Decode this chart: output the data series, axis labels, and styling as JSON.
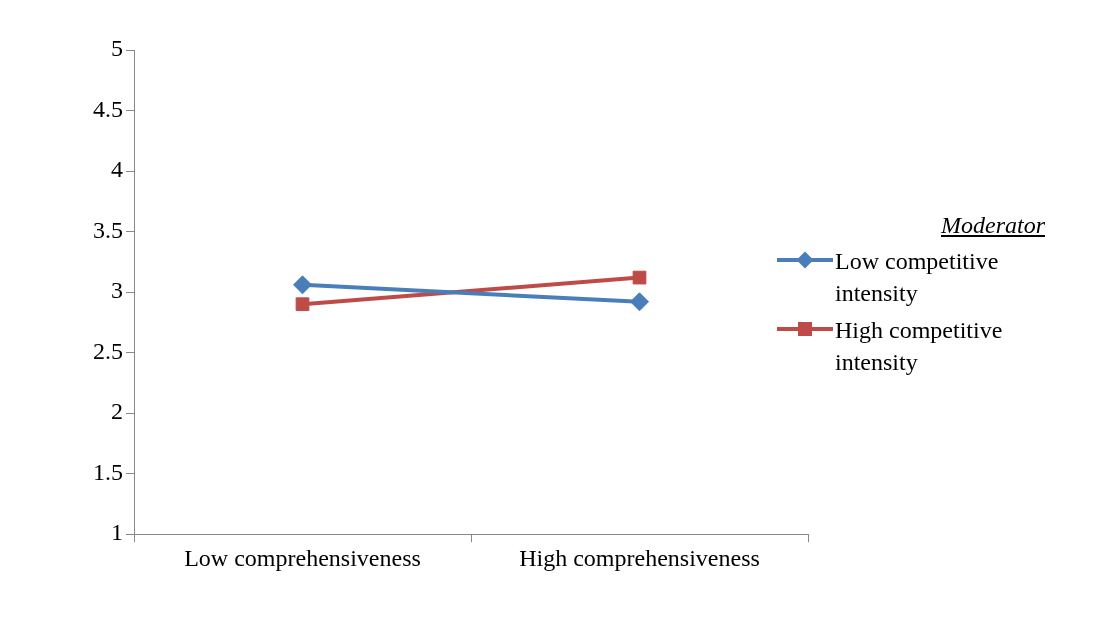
{
  "chart_data": {
    "type": "line",
    "categories": [
      "Low comprehensiveness",
      "High comprehensiveness"
    ],
    "series": [
      {
        "name": "Low competitive intensity",
        "color": "#4a7ebb",
        "values": [
          3.06,
          2.92
        ],
        "marker": "diamond"
      },
      {
        "name": "High competitive intensity",
        "color": "#be4b48",
        "values": [
          2.9,
          3.12
        ],
        "marker": "square"
      }
    ],
    "ylim": [
      1,
      5
    ],
    "yticks": [
      1,
      1.5,
      2,
      2.5,
      3,
      3.5,
      4,
      4.5,
      5
    ],
    "grid": false,
    "legend": "right",
    "legend_title": "Moderator"
  }
}
